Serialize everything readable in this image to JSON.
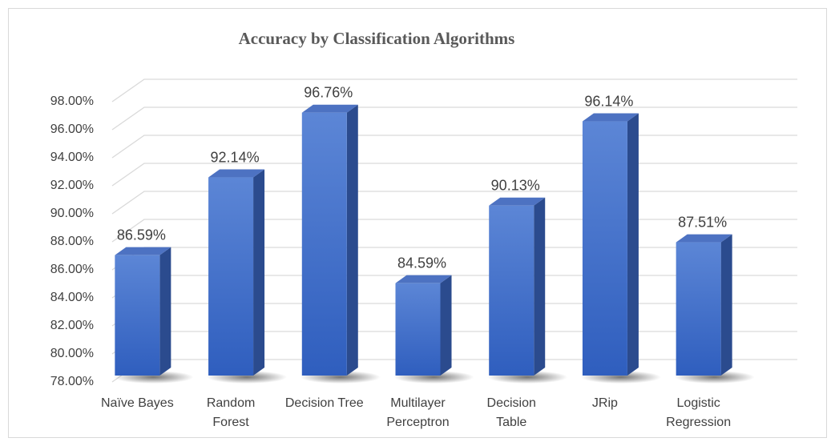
{
  "chart_data": {
    "type": "bar3d",
    "title": "Accuracy by Classification Algorithms",
    "categories": [
      "Naïve Bayes",
      "Random Forest",
      "Decision Tree",
      "Multilayer Perceptron",
      "Decision Table",
      "JRip",
      "Logistic Regression"
    ],
    "values": [
      86.59,
      92.14,
      96.76,
      84.59,
      90.13,
      96.14,
      87.51
    ],
    "value_labels": [
      "86.59%",
      "92.14%",
      "96.76%",
      "84.59%",
      "90.13%",
      "96.14%",
      "87.51%"
    ],
    "color": "#4472c4",
    "ylim": [
      78,
      98
    ],
    "yticks": [
      {
        "value": 78,
        "label": "78.00%"
      },
      {
        "value": 80,
        "label": "80.00%"
      },
      {
        "value": 82,
        "label": "82.00%"
      },
      {
        "value": 84,
        "label": "84.00%"
      },
      {
        "value": 86,
        "label": "86.00%"
      },
      {
        "value": 88,
        "label": "88.00%"
      },
      {
        "value": 90,
        "label": "90.00%"
      },
      {
        "value": 92,
        "label": "92.00%"
      },
      {
        "value": 94,
        "label": "94.00%"
      },
      {
        "value": 96,
        "label": "96.00%"
      },
      {
        "value": 98,
        "label": "98.00%"
      }
    ],
    "grid": true
  }
}
